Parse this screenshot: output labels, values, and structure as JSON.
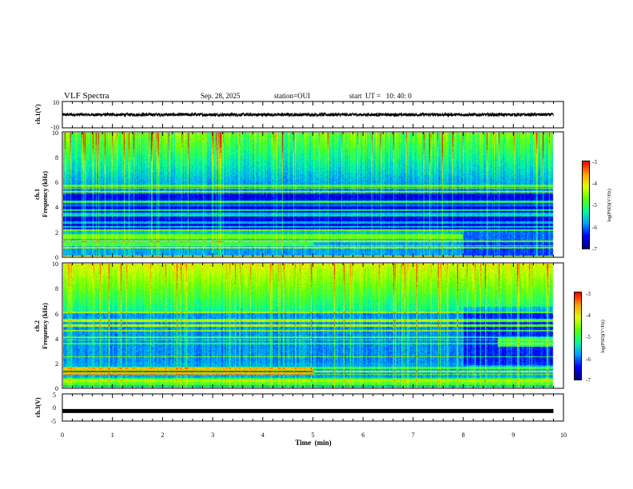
{
  "header": {
    "title": "VLF Spectra",
    "date": "Sep. 28, 2025",
    "station": "station=OUI",
    "start_ut": "start  UT =   10: 40: 0"
  },
  "chart_data": [
    {
      "name": "ch1-waveform",
      "type": "line",
      "ylabel": "ch.1(V)",
      "ylim": [
        -10,
        10
      ],
      "y_ticks": [
        "10",
        "-10"
      ],
      "xlim": [
        0,
        10
      ],
      "description_values": {
        "mean": 0.0,
        "amplitude": 1.2,
        "data_end_min": 9.8
      }
    },
    {
      "name": "ch1-spectrogram",
      "type": "heatmap",
      "ylabel": "ch.1",
      "ylabel2": "Frequency  (kHz)",
      "ylim": [
        0,
        10
      ],
      "y_ticks": [
        "0",
        "2",
        "4",
        "6",
        "8",
        "10"
      ],
      "xlim": [
        0,
        10
      ],
      "data_end_min": 9.8,
      "colorbar": {
        "label": "log(PSD)(V²/Hz)",
        "range": [
          -7,
          -3
        ],
        "ticks": [
          "-3",
          "-4",
          "-5",
          "-6",
          "-7"
        ]
      }
    },
    {
      "name": "ch2-spectrogram",
      "type": "heatmap",
      "ylabel": "ch.2",
      "ylabel2": "Frequency  (kHz)",
      "ylim": [
        0,
        10
      ],
      "y_ticks": [
        "0",
        "2",
        "4",
        "6",
        "8",
        "10"
      ],
      "xlim": [
        0,
        10
      ],
      "data_end_min": 9.8,
      "colorbar": {
        "label": "log(PSD)(V²/Hz)",
        "range": [
          -7,
          -3
        ],
        "ticks": [
          "-3",
          "-4",
          "-5",
          "-6",
          "-7"
        ]
      }
    },
    {
      "name": "ch3-waveform",
      "type": "line",
      "ylabel": "ch.3(V)",
      "ylim": [
        -5,
        5
      ],
      "y_ticks": [
        "5",
        "0",
        "-5"
      ],
      "xlim": [
        0,
        10
      ],
      "x_ticks": [
        "0",
        "1",
        "2",
        "3",
        "4",
        "5",
        "6",
        "7",
        "8",
        "9",
        "10"
      ],
      "xlabel": "Time  (min)",
      "description_values": {
        "level": -1.3,
        "data_end_min": 9.8
      }
    }
  ],
  "colors": {
    "colormap": [
      "#000080",
      "#0000ff",
      "#00a0ff",
      "#00ffa0",
      "#60ff00",
      "#e0ff00",
      "#ffa000",
      "#ff0000",
      "#ffffff"
    ]
  }
}
